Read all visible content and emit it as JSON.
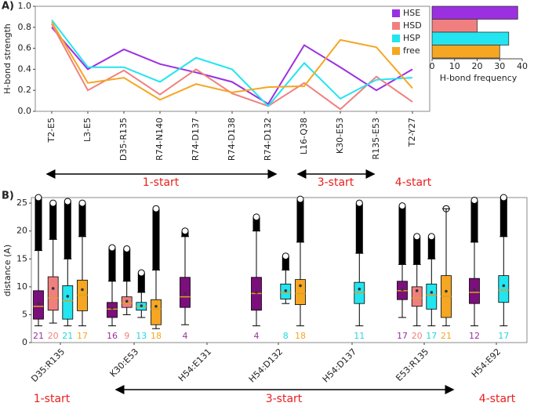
{
  "chart_data": [
    {
      "type": "line",
      "panel_label": "A)",
      "ylabel": "H-bond strength",
      "categories": [
        "T2-E5",
        "L3-E5",
        "D35-R135",
        "R74-N140",
        "R74-D137",
        "R74-D138",
        "R74-D132",
        "L16-Q38",
        "K30-E53",
        "R135-E53",
        "T2-Y27"
      ],
      "ylim": [
        0,
        1
      ],
      "yticks": [
        {
          "value": 0,
          "label": "0.0"
        },
        0.2,
        0.4,
        0.6,
        0.8,
        {
          "value": 1,
          "label": "1.0"
        }
      ],
      "series": [
        {
          "name": "HSE",
          "color": "#9b30e0",
          "values": [
            0.8,
            0.4,
            0.59,
            0.45,
            0.37,
            0.28,
            0.07,
            0.63,
            0.42,
            0.2,
            0.4
          ]
        },
        {
          "name": "HSD",
          "color": "#f08080",
          "values": [
            0.83,
            0.2,
            0.39,
            0.16,
            0.4,
            0.17,
            0.05,
            0.27,
            0.02,
            0.33,
            0.09
          ]
        },
        {
          "name": "HSP",
          "color": "#22e5f0",
          "values": [
            0.87,
            0.42,
            0.42,
            0.28,
            0.51,
            0.4,
            0.05,
            0.46,
            0.12,
            0.3,
            0.32
          ]
        },
        {
          "name": "free",
          "color": "#f5a623",
          "values": [
            0.85,
            0.27,
            0.32,
            0.11,
            0.26,
            0.18,
            0.23,
            0.24,
            0.68,
            0.61,
            0.22
          ]
        }
      ],
      "annotations": [
        "1-start",
        "3-start",
        "4-start"
      ]
    },
    {
      "type": "hbar",
      "xlabel": "H-bond frequency",
      "xlim": [
        0,
        40
      ],
      "xticks": [
        0,
        10,
        20,
        30,
        40
      ],
      "values": [
        38,
        20,
        34,
        30
      ],
      "colors": [
        "#9b30e0",
        "#f08080",
        "#22e5f0",
        "#f5a623"
      ]
    },
    {
      "type": "box",
      "panel_label": "B)",
      "ylabel": "distance (A)",
      "categories": [
        "D35:R135",
        "K30:E53",
        "H54:E131",
        "H54:D132",
        "H54:D137",
        "E53:R135",
        "H54:E92"
      ],
      "ylim": [
        0,
        26
      ],
      "yticks": [
        0,
        5,
        10,
        15,
        20,
        25
      ],
      "series": [
        {
          "name": "HSE",
          "color": "#7b0f7b",
          "text_color": "#9b30a0",
          "whislo": [
            3,
            3,
            3.2,
            3,
            null,
            4.5,
            3
          ],
          "q1": [
            4.2,
            4.5,
            6.3,
            5.8,
            null,
            7.7,
            7
          ],
          "med": [
            6.5,
            6,
            8.2,
            8.8,
            null,
            9.3,
            9
          ],
          "q3": [
            9.3,
            7.2,
            11.7,
            11.7,
            null,
            11,
            11.5
          ],
          "whishi": [
            16.5,
            11,
            19,
            20,
            null,
            14,
            18
          ],
          "mean": [
            7,
            6.2,
            8.8,
            9,
            null,
            9.5,
            9.5
          ],
          "flier_max": [
            26,
            17,
            20,
            22.5,
            null,
            24.5,
            25.5
          ],
          "counts": [
            21,
            16,
            4,
            4,
            null,
            17,
            12
          ]
        },
        {
          "name": "HSD",
          "color": "#f08080",
          "text_color": "#f08080",
          "whislo": [
            3.5,
            5,
            null,
            null,
            null,
            3,
            null
          ],
          "q1": [
            5.8,
            6.3,
            null,
            null,
            null,
            6.5,
            null
          ],
          "med": [
            8,
            7.1,
            null,
            null,
            null,
            8,
            null
          ],
          "q3": [
            11.8,
            8.2,
            null,
            null,
            null,
            10,
            null
          ],
          "whishi": [
            18.5,
            11,
            null,
            null,
            null,
            14,
            null
          ],
          "mean": [
            9.7,
            7.4,
            null,
            null,
            null,
            9.3,
            null
          ],
          "flier_max": [
            25,
            16.8,
            null,
            null,
            null,
            19,
            null
          ],
          "counts": [
            20,
            9,
            null,
            null,
            null,
            20,
            null
          ]
        },
        {
          "name": "HSP",
          "color": "#22e5f0",
          "text_color": "#22d5e0",
          "whislo": [
            3,
            4.5,
            null,
            7,
            3,
            3,
            3
          ],
          "q1": [
            4.2,
            5.8,
            null,
            7.8,
            7,
            6,
            7.2
          ],
          "med": [
            7.5,
            6.5,
            null,
            9,
            9,
            8.5,
            9.4
          ],
          "q3": [
            10.2,
            7.2,
            null,
            10.5,
            10.8,
            10.5,
            12
          ],
          "whishi": [
            15,
            9,
            null,
            13,
            16,
            15,
            19
          ],
          "mean": [
            8.3,
            6.6,
            null,
            9.3,
            9.6,
            9,
            10.2
          ],
          "flier_max": [
            25.3,
            12.5,
            null,
            15.5,
            25,
            19,
            26
          ],
          "counts": [
            21,
            13,
            null,
            8,
            11,
            17,
            17
          ]
        },
        {
          "name": "free",
          "color": "#f5a623",
          "text_color": "#f5a623",
          "whislo": [
            3,
            2.5,
            null,
            3,
            null,
            3,
            null
          ],
          "q1": [
            5.7,
            3.2,
            null,
            6.8,
            null,
            4.5,
            null
          ],
          "med": [
            8.5,
            6,
            null,
            8.8,
            null,
            8.3,
            null
          ],
          "q3": [
            11.2,
            7.7,
            null,
            11.3,
            null,
            12,
            null
          ],
          "whishi": [
            19,
            13,
            null,
            18,
            null,
            24,
            null
          ],
          "mean": [
            9.5,
            6.5,
            null,
            10.2,
            null,
            9.2,
            null
          ],
          "flier_max": [
            25,
            24,
            null,
            25.7,
            null,
            24,
            null
          ],
          "counts": [
            17,
            18,
            null,
            18,
            null,
            21,
            null
          ]
        }
      ],
      "annotations": [
        "1-start",
        "3-start",
        "4-start"
      ]
    }
  ]
}
